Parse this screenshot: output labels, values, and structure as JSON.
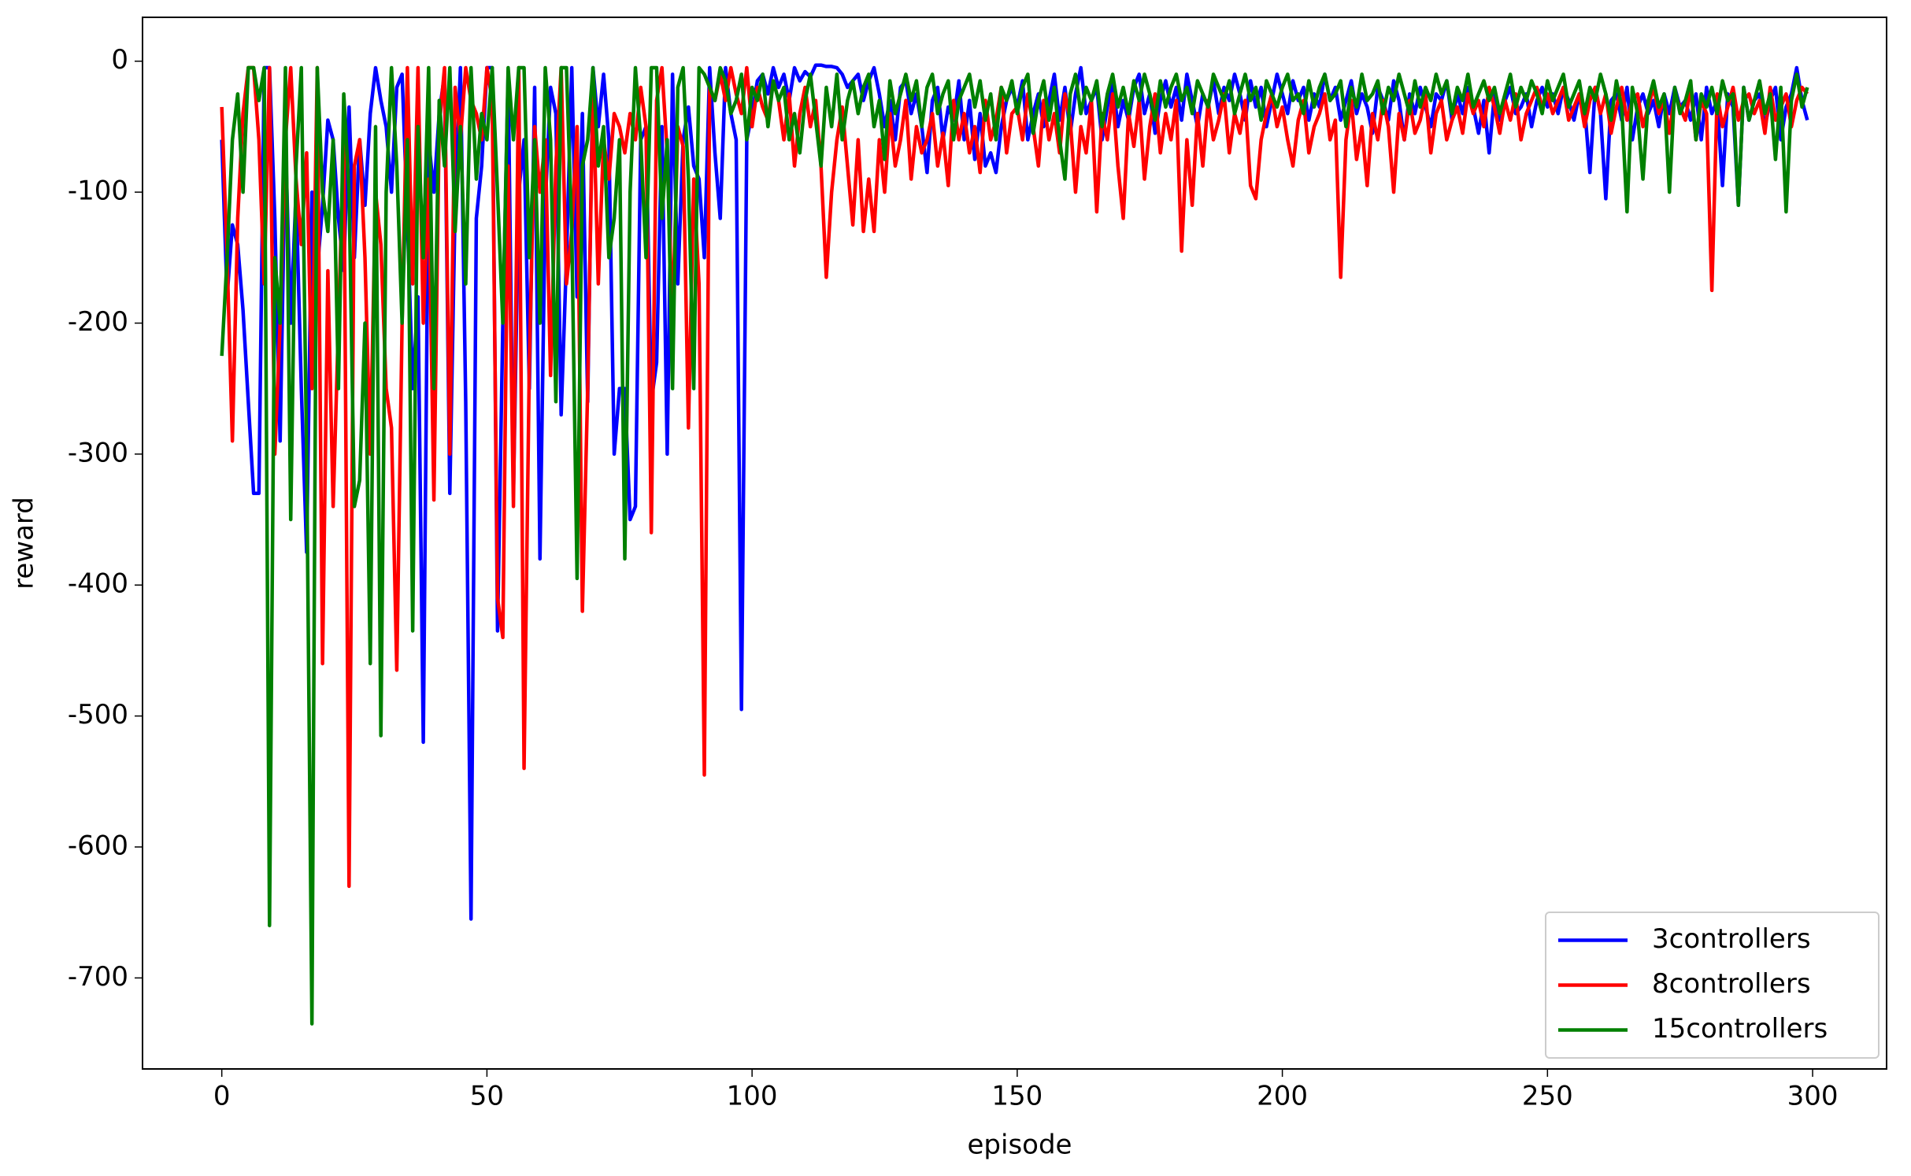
{
  "chart_data": {
    "type": "line",
    "x_label": "episode",
    "y_label": "reward",
    "xlim": [
      -14.95,
      313.95
    ],
    "ylim": [
      -769.5,
      33.5
    ],
    "xticks": [
      0,
      50,
      100,
      150,
      200,
      250,
      300
    ],
    "yticks": [
      0,
      -100,
      -200,
      -300,
      -400,
      -500,
      -600,
      -700
    ],
    "legend": "lower right",
    "grid": false,
    "x": [
      0,
      1,
      2,
      3,
      4,
      5,
      6,
      7,
      8,
      9,
      10,
      11,
      12,
      13,
      14,
      15,
      16,
      17,
      18,
      19,
      20,
      21,
      22,
      23,
      24,
      25,
      26,
      27,
      28,
      29,
      30,
      31,
      32,
      33,
      34,
      35,
      36,
      37,
      38,
      39,
      40,
      41,
      42,
      43,
      44,
      45,
      46,
      47,
      48,
      49,
      50,
      51,
      52,
      53,
      54,
      55,
      56,
      57,
      58,
      59,
      60,
      61,
      62,
      63,
      64,
      65,
      66,
      67,
      68,
      69,
      70,
      71,
      72,
      73,
      74,
      75,
      76,
      77,
      78,
      79,
      80,
      81,
      82,
      83,
      84,
      85,
      86,
      87,
      88,
      89,
      90,
      91,
      92,
      93,
      94,
      95,
      96,
      97,
      98,
      99,
      100,
      101,
      102,
      103,
      104,
      105,
      106,
      107,
      108,
      109,
      110,
      111,
      112,
      113,
      114,
      115,
      116,
      117,
      118,
      119,
      120,
      121,
      122,
      123,
      124,
      125,
      126,
      127,
      128,
      129,
      130,
      131,
      132,
      133,
      134,
      135,
      136,
      137,
      138,
      139,
      140,
      141,
      142,
      143,
      144,
      145,
      146,
      147,
      148,
      149,
      150,
      151,
      152,
      153,
      154,
      155,
      156,
      157,
      158,
      159,
      160,
      161,
      162,
      163,
      164,
      165,
      166,
      167,
      168,
      169,
      170,
      171,
      172,
      173,
      174,
      175,
      176,
      177,
      178,
      179,
      180,
      181,
      182,
      183,
      184,
      185,
      186,
      187,
      188,
      189,
      190,
      191,
      192,
      193,
      194,
      195,
      196,
      197,
      198,
      199,
      200,
      201,
      202,
      203,
      204,
      205,
      206,
      207,
      208,
      209,
      210,
      211,
      212,
      213,
      214,
      215,
      216,
      217,
      218,
      219,
      220,
      221,
      222,
      223,
      224,
      225,
      226,
      227,
      228,
      229,
      230,
      231,
      232,
      233,
      234,
      235,
      236,
      237,
      238,
      239,
      240,
      241,
      242,
      243,
      244,
      245,
      246,
      247,
      248,
      249,
      250,
      251,
      252,
      253,
      254,
      255,
      256,
      257,
      258,
      259,
      260,
      261,
      262,
      263,
      264,
      265,
      266,
      267,
      268,
      269,
      270,
      271,
      272,
      273,
      274,
      275,
      276,
      277,
      278,
      279,
      280,
      281,
      282,
      283,
      284,
      285,
      286,
      287,
      288,
      289,
      290,
      291,
      292,
      293,
      294,
      295,
      296,
      297,
      298,
      299
    ],
    "series": [
      {
        "name": "3controllers",
        "color": "#0000ff",
        "values": [
          -60,
          -180,
          -125,
          -140,
          -190,
          -260,
          -330,
          -330,
          -5,
          -5,
          -120,
          -290,
          -60,
          -200,
          -100,
          -250,
          -375,
          -100,
          -160,
          -110,
          -45,
          -60,
          -120,
          -160,
          -35,
          -150,
          -60,
          -110,
          -40,
          -5,
          -30,
          -50,
          -100,
          -20,
          -10,
          -120,
          -250,
          -180,
          -520,
          -60,
          -100,
          -40,
          -10,
          -330,
          -110,
          -5,
          -260,
          -655,
          -120,
          -80,
          -5,
          -5,
          -435,
          -200,
          -10,
          -330,
          -100,
          -60,
          -250,
          -20,
          -380,
          -110,
          -20,
          -40,
          -270,
          -150,
          -5,
          -180,
          -40,
          -260,
          -5,
          -50,
          -10,
          -60,
          -300,
          -250,
          -250,
          -350,
          -340,
          -60,
          -50,
          -260,
          -230,
          -50,
          -300,
          -10,
          -170,
          -60,
          -35,
          -80,
          -90,
          -150,
          -5,
          -70,
          -120,
          -5,
          -40,
          -60,
          -495,
          -60,
          -40,
          -15,
          -10,
          -25,
          -5,
          -20,
          -10,
          -30,
          -5,
          -15,
          -8,
          -12,
          -3,
          -3,
          -4,
          -4,
          -5,
          -10,
          -20,
          -15,
          -10,
          -30,
          -15,
          -5,
          -25,
          -50,
          -30,
          -60,
          -20,
          -15,
          -40,
          -25,
          -50,
          -85,
          -30,
          -20,
          -60,
          -35,
          -45,
          -15,
          -60,
          -30,
          -75,
          -40,
          -80,
          -70,
          -85,
          -50,
          -30,
          -20,
          -35,
          -15,
          -60,
          -40,
          -25,
          -50,
          -30,
          -10,
          -45,
          -20,
          -55,
          -25,
          -5,
          -40,
          -30,
          -20,
          -60,
          -35,
          -15,
          -50,
          -30,
          -45,
          -20,
          -10,
          -40,
          -25,
          -55,
          -30,
          -15,
          -35,
          -20,
          -45,
          -10,
          -30,
          -50,
          -25,
          -35,
          -15,
          -40,
          -20,
          -30,
          -10,
          -25,
          -45,
          -15,
          -35,
          -20,
          -50,
          -30,
          -10,
          -25,
          -40,
          -15,
          -30,
          -20,
          -45,
          -25,
          -35,
          -10,
          -30,
          -20,
          -45,
          -30,
          -15,
          -40,
          -25,
          -35,
          -55,
          -20,
          -30,
          -45,
          -15,
          -30,
          -60,
          -25,
          -40,
          -20,
          -35,
          -50,
          -25,
          -30,
          -15,
          -45,
          -25,
          -40,
          -20,
          -35,
          -55,
          -30,
          -70,
          -25,
          -45,
          -30,
          -20,
          -40,
          -35,
          -25,
          -50,
          -30,
          -20,
          -35,
          -25,
          -40,
          -20,
          -30,
          -45,
          -25,
          -35,
          -85,
          -20,
          -40,
          -105,
          -30,
          -25,
          -45,
          -20,
          -60,
          -35,
          -25,
          -40,
          -30,
          -50,
          -25,
          -40,
          -20,
          -35,
          -30,
          -45,
          -25,
          -60,
          -20,
          -40,
          -30,
          -95,
          -25,
          -35,
          -110,
          -20,
          -45,
          -30,
          -25,
          -50,
          -30,
          -20,
          -60,
          -35,
          -25,
          -5,
          -30,
          -45
        ]
      },
      {
        "name": "8controllers",
        "color": "#ff0000",
        "values": [
          -35,
          -150,
          -290,
          -120,
          -40,
          -5,
          -5,
          -60,
          -170,
          -5,
          -300,
          -200,
          -60,
          -5,
          -90,
          -140,
          -70,
          -250,
          -5,
          -460,
          -160,
          -340,
          -200,
          -60,
          -630,
          -80,
          -60,
          -150,
          -300,
          -100,
          -140,
          -250,
          -280,
          -465,
          -200,
          -5,
          -170,
          -5,
          -200,
          -90,
          -335,
          -50,
          -5,
          -300,
          -20,
          -60,
          -5,
          -30,
          -40,
          -60,
          -5,
          -30,
          -410,
          -440,
          -80,
          -340,
          -5,
          -540,
          -230,
          -50,
          -100,
          -60,
          -240,
          -80,
          -5,
          -170,
          -130,
          -50,
          -420,
          -250,
          -20,
          -170,
          -60,
          -90,
          -40,
          -50,
          -70,
          -40,
          -60,
          -20,
          -50,
          -360,
          -30,
          -5,
          -70,
          -200,
          -50,
          -65,
          -280,
          -90,
          -170,
          -545,
          -20,
          -30,
          -10,
          -30,
          -5,
          -25,
          -40,
          -5,
          -50,
          -20,
          -35,
          -45,
          -15,
          -30,
          -60,
          -25,
          -80,
          -40,
          -20,
          -50,
          -30,
          -80,
          -165,
          -100,
          -60,
          -35,
          -80,
          -125,
          -60,
          -130,
          -90,
          -130,
          -60,
          -100,
          -40,
          -80,
          -60,
          -30,
          -90,
          -50,
          -70,
          -60,
          -40,
          -80,
          -55,
          -95,
          -30,
          -60,
          -40,
          -70,
          -50,
          -85,
          -30,
          -60,
          -45,
          -20,
          -70,
          -40,
          -35,
          -60,
          -25,
          -50,
          -80,
          -30,
          -60,
          -40,
          -70,
          -25,
          -45,
          -100,
          -50,
          -70,
          -30,
          -115,
          -40,
          -60,
          -25,
          -80,
          -120,
          -40,
          -65,
          -30,
          -90,
          -50,
          -25,
          -70,
          -40,
          -60,
          -30,
          -145,
          -60,
          -110,
          -40,
          -80,
          -30,
          -60,
          -45,
          -25,
          -70,
          -40,
          -55,
          -30,
          -95,
          -105,
          -60,
          -40,
          -25,
          -50,
          -35,
          -60,
          -80,
          -45,
          -30,
          -70,
          -50,
          -40,
          -25,
          -60,
          -45,
          -165,
          -60,
          -30,
          -75,
          -50,
          -95,
          -40,
          -60,
          -30,
          -50,
          -100,
          -40,
          -60,
          -30,
          -55,
          -45,
          -25,
          -70,
          -40,
          -30,
          -60,
          -45,
          -35,
          -55,
          -25,
          -40,
          -30,
          -50,
          -20,
          -35,
          -55,
          -30,
          -45,
          -25,
          -60,
          -40,
          -30,
          -20,
          -35,
          -25,
          -40,
          -30,
          -20,
          -45,
          -35,
          -25,
          -50,
          -30,
          -20,
          -40,
          -25,
          -55,
          -35,
          -20,
          -45,
          -30,
          -25,
          -50,
          -35,
          -20,
          -40,
          -30,
          -55,
          -25,
          -35,
          -45,
          -20,
          -60,
          -30,
          -40,
          -175,
          -25,
          -50,
          -35,
          -20,
          -45,
          -30,
          -25,
          -40,
          -30,
          -55,
          -20,
          -45,
          -35,
          -25,
          -50,
          -30,
          -20,
          -25
        ]
      },
      {
        "name": "15controllers",
        "color": "#008000",
        "values": [
          -225,
          -150,
          -60,
          -25,
          -100,
          -5,
          -5,
          -30,
          -5,
          -660,
          -150,
          -200,
          -5,
          -350,
          -80,
          -5,
          -300,
          -735,
          -5,
          -100,
          -130,
          -60,
          -250,
          -25,
          -100,
          -340,
          -320,
          -200,
          -460,
          -50,
          -515,
          -100,
          -5,
          -80,
          -200,
          -60,
          -435,
          -50,
          -150,
          -5,
          -250,
          -30,
          -80,
          -5,
          -130,
          -50,
          -170,
          -5,
          -90,
          -40,
          -60,
          -5,
          -100,
          -200,
          -5,
          -60,
          -5,
          -5,
          -150,
          -60,
          -200,
          -5,
          -60,
          -260,
          -5,
          -5,
          -130,
          -395,
          -80,
          -60,
          -5,
          -80,
          -50,
          -150,
          -120,
          -60,
          -380,
          -100,
          -5,
          -60,
          -150,
          -5,
          -5,
          -120,
          -60,
          -250,
          -20,
          -5,
          -90,
          -250,
          -5,
          -10,
          -20,
          -30,
          -5,
          -15,
          -40,
          -30,
          -10,
          -60,
          -20,
          -30,
          -10,
          -50,
          -15,
          -30,
          -20,
          -60,
          -40,
          -70,
          -30,
          -10,
          -45,
          -80,
          -20,
          -50,
          -10,
          -60,
          -30,
          -15,
          -40,
          -20,
          -10,
          -50,
          -30,
          -75,
          -15,
          -40,
          -25,
          -10,
          -30,
          -15,
          -50,
          -20,
          -10,
          -40,
          -25,
          -15,
          -60,
          -30,
          -20,
          -10,
          -35,
          -15,
          -45,
          -25,
          -60,
          -20,
          -30,
          -15,
          -40,
          -20,
          -10,
          -55,
          -30,
          -15,
          -45,
          -20,
          -60,
          -90,
          -25,
          -10,
          -40,
          -20,
          -30,
          -15,
          -50,
          -25,
          -10,
          -35,
          -20,
          -40,
          -15,
          -30,
          -10,
          -25,
          -45,
          -15,
          -35,
          -20,
          -10,
          -30,
          -20,
          -40,
          -15,
          -25,
          -35,
          -10,
          -20,
          -30,
          -15,
          -40,
          -25,
          -10,
          -30,
          -20,
          -45,
          -15,
          -25,
          -35,
          -20,
          -10,
          -30,
          -25,
          -40,
          -15,
          -35,
          -20,
          -10,
          -30,
          -25,
          -15,
          -50,
          -20,
          -35,
          -10,
          -30,
          -25,
          -15,
          -40,
          -20,
          -30,
          -10,
          -25,
          -40,
          -15,
          -35,
          -20,
          -30,
          -10,
          -25,
          -15,
          -40,
          -20,
          -30,
          -10,
          -35,
          -25,
          -15,
          -30,
          -20,
          -40,
          -25,
          -10,
          -35,
          -20,
          -30,
          -15,
          -25,
          -40,
          -15,
          -30,
          -20,
          -10,
          -35,
          -25,
          -15,
          -40,
          -20,
          -30,
          -10,
          -25,
          -45,
          -15,
          -35,
          -115,
          -20,
          -40,
          -90,
          -30,
          -15,
          -35,
          -25,
          -100,
          -20,
          -40,
          -30,
          -15,
          -60,
          -25,
          -35,
          -20,
          -40,
          -15,
          -30,
          -25,
          -110,
          -20,
          -45,
          -30,
          -15,
          -40,
          -25,
          -75,
          -20,
          -115,
          -30,
          -10,
          -35,
          -20
        ]
      }
    ]
  }
}
